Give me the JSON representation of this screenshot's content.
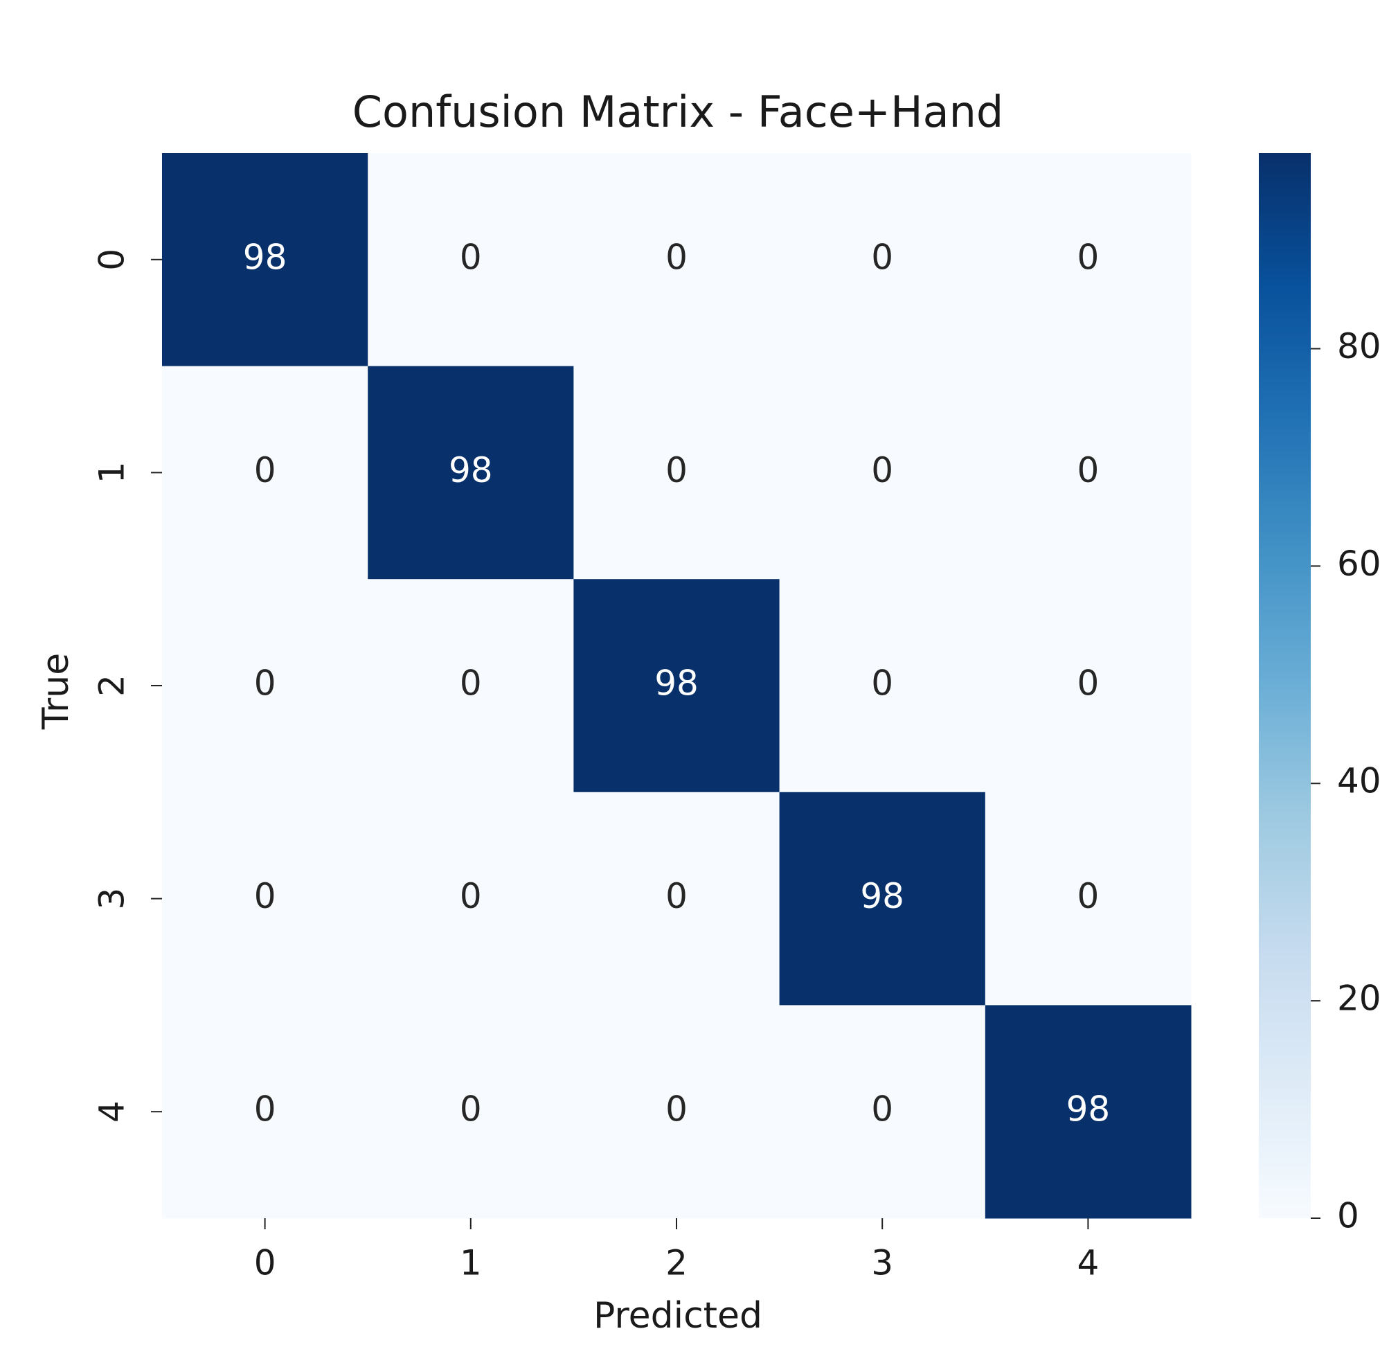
{
  "chart_data": {
    "type": "heatmap",
    "title": "Confusion Matrix - Face+Hand",
    "xlabel": "Predicted",
    "ylabel": "True",
    "x_categories": [
      "0",
      "1",
      "2",
      "3",
      "4"
    ],
    "y_categories": [
      "0",
      "1",
      "2",
      "3",
      "4"
    ],
    "values": [
      [
        98,
        0,
        0,
        0,
        0
      ],
      [
        0,
        98,
        0,
        0,
        0
      ],
      [
        0,
        0,
        98,
        0,
        0
      ],
      [
        0,
        0,
        0,
        98,
        0
      ],
      [
        0,
        0,
        0,
        0,
        98
      ]
    ],
    "cmap": "Blues",
    "clim": [
      0,
      98
    ],
    "colorbar_ticks": [
      0,
      20,
      40,
      60,
      80
    ]
  }
}
